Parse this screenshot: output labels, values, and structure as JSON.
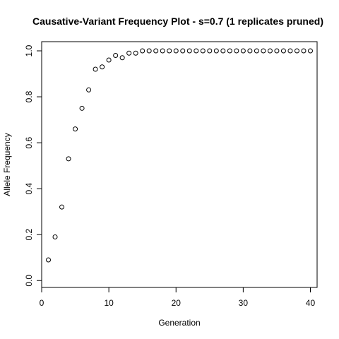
{
  "chart_data": {
    "type": "scatter",
    "title": "Causative-Variant Frequency Plot - s=0.7 (1 replicates pruned)",
    "xlabel": "Generation",
    "ylabel": "Allele Frequency",
    "xlim": [
      0,
      41
    ],
    "ylim": [
      -0.03,
      1.04
    ],
    "xticks": [
      0,
      10,
      20,
      30,
      40
    ],
    "yticks": [
      0.0,
      0.2,
      0.4,
      0.6,
      0.8,
      1.0
    ],
    "xtick_labels": [
      "0",
      "10",
      "20",
      "30",
      "40"
    ],
    "ytick_labels": [
      "0.0",
      "0.2",
      "0.4",
      "0.6",
      "0.8",
      "1.0"
    ],
    "grid": false,
    "marker": "open-circle",
    "x": [
      1,
      2,
      3,
      4,
      5,
      6,
      7,
      8,
      9,
      10,
      11,
      12,
      13,
      14,
      15,
      16,
      17,
      18,
      19,
      20,
      21,
      22,
      23,
      24,
      25,
      26,
      27,
      28,
      29,
      30,
      31,
      32,
      33,
      34,
      35,
      36,
      37,
      38,
      39,
      40
    ],
    "y": [
      0.09,
      0.19,
      0.32,
      0.53,
      0.66,
      0.75,
      0.83,
      0.92,
      0.93,
      0.96,
      0.98,
      0.97,
      0.99,
      0.99,
      1.0,
      1.0,
      1.0,
      1.0,
      1.0,
      1.0,
      1.0,
      1.0,
      1.0,
      1.0,
      1.0,
      1.0,
      1.0,
      1.0,
      1.0,
      1.0,
      1.0,
      1.0,
      1.0,
      1.0,
      1.0,
      1.0,
      1.0,
      1.0,
      1.0,
      1.0
    ]
  }
}
